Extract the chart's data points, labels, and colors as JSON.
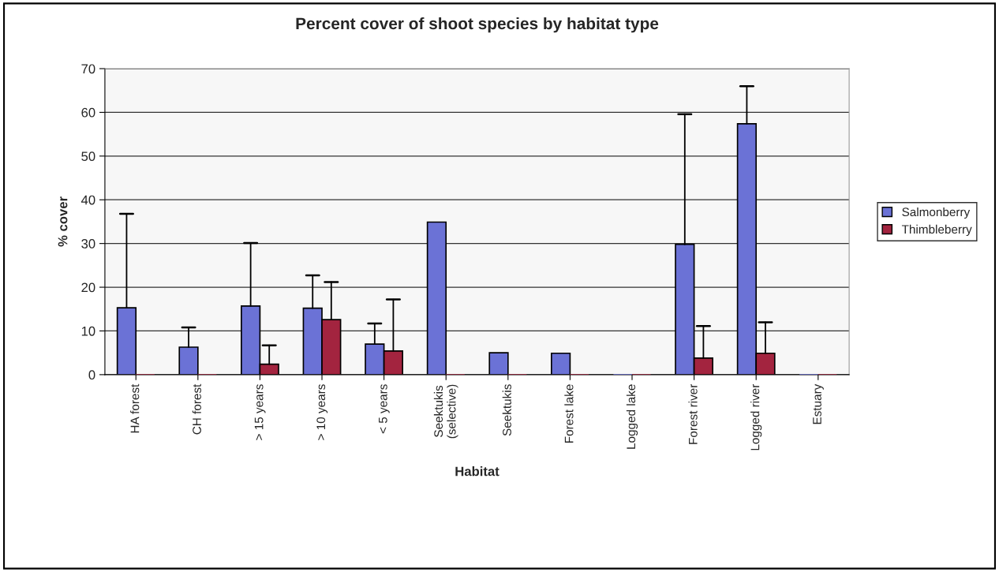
{
  "chart_data": {
    "type": "bar",
    "title": "Percent cover of shoot species by habitat type",
    "xlabel": "Habitat",
    "ylabel": "% cover",
    "categories": [
      "HA forest",
      "CH forest",
      "> 15 years",
      "> 10 years",
      "< 5 years",
      "Seektukis\n(selective)",
      "Seektukis",
      "Forest lake",
      "Logged lake",
      "Forest river",
      "Logged river",
      "Estuary"
    ],
    "series": [
      {
        "name": "Salmonberry",
        "color": "#6b72d6",
        "values": [
          15.3,
          6.3,
          15.7,
          15.2,
          7.0,
          34.9,
          5.0,
          4.9,
          0,
          29.8,
          57.4,
          0
        ],
        "errors": [
          [
            15.3,
            36.8
          ],
          [
            6.3,
            10.8
          ],
          [
            15.7,
            30.1
          ],
          [
            15.2,
            22.7
          ],
          [
            7.0,
            11.7
          ],
          null,
          null,
          null,
          null,
          [
            29.8,
            59.6
          ],
          [
            57.4,
            66.0
          ],
          null
        ]
      },
      {
        "name": "Thimbleberry",
        "color": "#a3243f",
        "values": [
          0,
          0,
          2.4,
          12.6,
          5.4,
          0,
          0,
          0,
          0,
          3.8,
          4.9,
          0
        ],
        "errors": [
          null,
          null,
          [
            2.4,
            6.7
          ],
          [
            12.6,
            21.2
          ],
          [
            5.4,
            17.2
          ],
          null,
          null,
          null,
          null,
          [
            3.8,
            11.1
          ],
          [
            4.9,
            12.0
          ],
          null
        ]
      }
    ],
    "ylim": [
      0,
      70
    ],
    "yticks": [
      0,
      10,
      20,
      30,
      40,
      50,
      60,
      70
    ],
    "grid": "y",
    "legend": "right"
  }
}
